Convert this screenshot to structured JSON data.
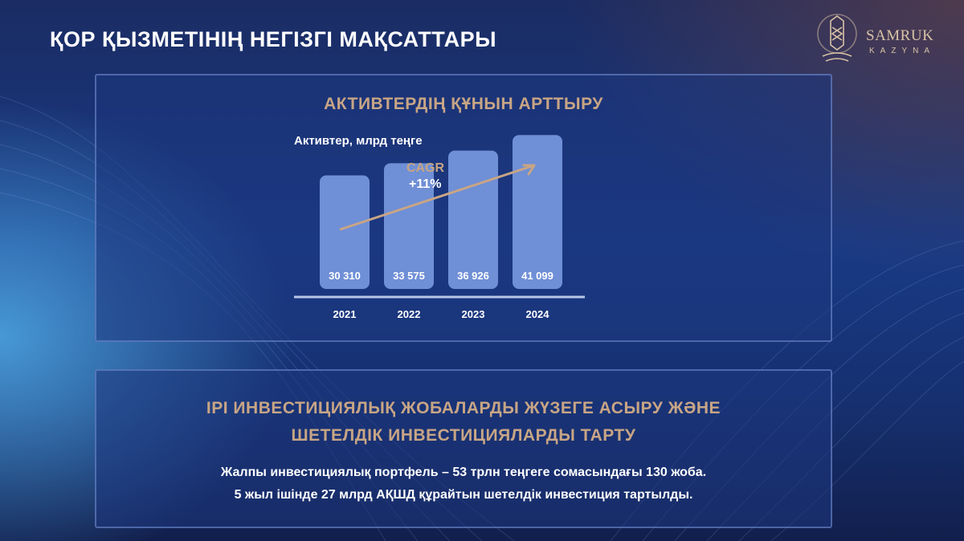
{
  "header": {
    "title": "ҚОР ҚЫЗМЕТІНІҢ НЕГІЗГІ МАҚСАТТАРЫ",
    "logo": {
      "name": "SAMRUK",
      "sub": "KAZYNA",
      "icon": "samruk-emblem-icon"
    }
  },
  "assets_panel": {
    "heading": "АКТИВТЕРДІҢ ҚҰНЫН АРТТЫРУ",
    "cagr_label": "CAGR",
    "cagr_value": "+11%"
  },
  "chart_data": {
    "type": "bar",
    "title": "Активтер, млрд теңге",
    "categories": [
      "2021",
      "2022",
      "2023",
      "2024"
    ],
    "values": [
      30310,
      33575,
      36926,
      41099
    ],
    "value_labels": [
      "30 310",
      "33 575",
      "36 926",
      "41 099"
    ],
    "ylim": [
      0,
      45000
    ],
    "grid": false,
    "legend": "none",
    "annotations": [
      "CAGR",
      "+11%"
    ],
    "colors": {
      "bar": "#6f8fd6",
      "label": "#ffffff",
      "arrow": "#c8a585"
    }
  },
  "investment_panel": {
    "heading_line1": "ІРІ ИНВЕСТИЦИЯЛЫҚ ЖОБАЛАРДЫ ЖҮЗЕГЕ АСЫРУ ЖӘНЕ",
    "heading_line2": "ШЕТЕЛДІК ИНВЕСТИЦИЯЛАРДЫ ТАРТУ",
    "text_line1": "Жалпы инвестициялық портфель – 53 трлн теңгеге сомасындағы 130 жоба.",
    "text_line2": "5 жыл ішінде 27 млрд АҚШД құрайтын шетелдік инвестиция тартылды."
  },
  "colors": {
    "accent": "#c8a585",
    "panel_border": "#7896d7",
    "text": "#ffffff"
  }
}
